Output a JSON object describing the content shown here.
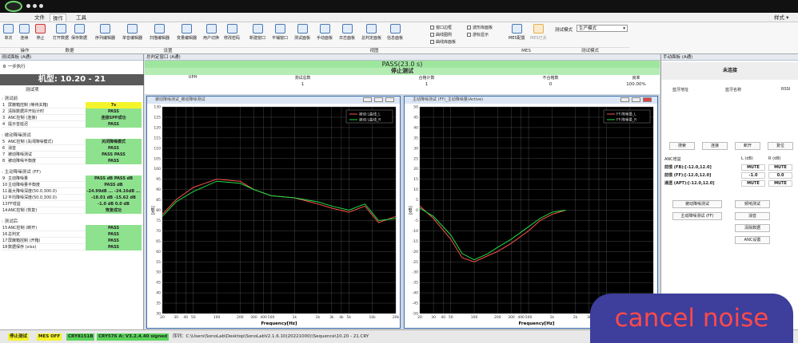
{
  "window": {
    "right_label": "样式 ▾"
  },
  "menu": {
    "tabs": [
      "文件",
      "操作",
      "工具"
    ]
  },
  "ribbon": {
    "buttons": [
      "单次",
      "连续",
      "停止",
      "打开数据",
      "保存数据",
      "序列编辑器",
      "单音编辑器",
      "扫描编辑器",
      "变量编辑器",
      "用户切换",
      "修改密码",
      "新建窗口",
      "平铺窗口",
      "测试面板",
      "手动面板",
      "日志面板",
      "总判定面板",
      "信息面板",
      "MES配置",
      "MES已关"
    ],
    "checkboxes": [
      "窗口边框",
      "曲线图例",
      "曲线库面板",
      "波形库面板",
      "游标显示"
    ],
    "test_mode_label": "测试模式",
    "test_mode_value": "生产模式",
    "groups": [
      "操作",
      "数据",
      "设置",
      "视图",
      "MES",
      "测试模式"
    ]
  },
  "left_panel": {
    "title": "测试面板 (A通)",
    "step_label": "一步执行",
    "machine": "机型: 10.20 - 21",
    "test_item_label": "测试项",
    "groups": [
      {
        "title": ": 测试前",
        "rows": [
          {
            "n": "1",
            "name": "屏蔽箱控制 (等待关箱)",
            "v": "7s",
            "c": "y"
          },
          {
            "n": "2",
            "name": "清除数据并开始计时",
            "v": "PASS",
            "c": "g"
          },
          {
            "n": "3",
            "name": "ANC控制 (连接)",
            "v": "连接SPP成功",
            "c": "g"
          },
          {
            "n": "4",
            "name": "提示音延迟",
            "v": "PASS",
            "c": "g"
          }
        ]
      },
      {
        "title": ": 被动降噪测试",
        "rows": [
          {
            "n": "5",
            "name": "ANC控制 (关闭降噪模式)",
            "v": "关闭降噪模式",
            "c": "g"
          },
          {
            "n": "6",
            "name": "消音",
            "v": "PASS",
            "c": "g"
          },
          {
            "n": "7",
            "name": "被动降噪测试",
            "v": "PASS    PASS",
            "c": "g"
          },
          {
            "n": "8",
            "name": "被动降噪平衡度",
            "v": "PASS",
            "c": "g"
          }
        ]
      },
      {
        "title": ": 主动降噪测试 (FF)",
        "rows": [
          {
            "n": "9",
            "name": "主动降噪量",
            "v": "PASS dB   PASS dB",
            "c": "g"
          },
          {
            "n": "10",
            "name": "主动降噪量平衡度",
            "v": "PASS dB",
            "c": "g"
          },
          {
            "n": "11",
            "name": "最大降噪深度(50.0,300.0)",
            "v": "-24.99dB ... -24.16dB ...",
            "c": "g"
          },
          {
            "n": "12",
            "name": "平均降噪深度(50.0,300.0)",
            "v": "-18.01 dB   -15.62 dB",
            "c": "g"
          },
          {
            "n": "13",
            "name": "FF增益",
            "v": "-1.0 dB    0.0 dB",
            "c": "g"
          },
          {
            "n": "14",
            "name": "ANC控制 (恢复)",
            "v": "恢复成功",
            "c": "g"
          }
        ]
      },
      {
        "title": ": 测试后",
        "rows": [
          {
            "n": "15",
            "name": "ANC控制 (断开)",
            "v": "PASS",
            "c": "g"
          },
          {
            "n": "16",
            "name": "总判定",
            "v": "PASS",
            "c": "g"
          },
          {
            "n": "17",
            "name": "屏蔽箱控制 (开箱)",
            "v": "PASS",
            "c": "g"
          },
          {
            "n": "18",
            "name": "数据保存 (xlsx)",
            "v": "PASS",
            "c": "g"
          }
        ]
      }
    ]
  },
  "main": {
    "title": "总判定窗口 (A通)",
    "pass": "PASS(23.0 s)",
    "stop": "停止测试",
    "stats": [
      {
        "label": "UPH",
        "value": ""
      },
      {
        "label": "测试总数",
        "value": "1"
      },
      {
        "label": "合格计数",
        "value": "1"
      },
      {
        "label": "不合格数",
        "value": "0"
      },
      {
        "label": "良率",
        "value": "100.00%"
      }
    ]
  },
  "chart1": {
    "window_title": "被动降噪测试_被动降噪测试",
    "legend": [
      "被动:L曲线_L",
      "被动:L曲线_R"
    ],
    "xlabel": "Frequency[Hz]",
    "ylabel": "[dB]"
  },
  "chart2": {
    "window_title": "主动降噪测试 (FF)_主动降噪量(Active)",
    "legend": [
      "FF:降噪量_L",
      "FF:降噪量_R"
    ],
    "xlabel": "Frequency[Hz]",
    "ylabel": "[dB]"
  },
  "chart_data": [
    {
      "type": "line",
      "title": "",
      "xlabel": "Frequency[Hz]",
      "ylabel": "[dB]",
      "x_scale": "log",
      "xlim": [
        20,
        20000
      ],
      "ylim": [
        30,
        130
      ],
      "x_ticks": [
        "20",
        "30",
        "40",
        "50",
        "100",
        "200",
        "300",
        "400",
        "500",
        "1k",
        "2k",
        "3k",
        "4k",
        "5k",
        "10k",
        "20k"
      ],
      "y_ticks": [
        "130",
        "125",
        "120",
        "115",
        "110",
        "105",
        "100",
        "95",
        "90",
        "85",
        "80",
        "75",
        "70",
        "65",
        "60",
        "55",
        "50",
        "45",
        "40",
        "35",
        "30"
      ],
      "legend": "top-right",
      "grid": true,
      "x": [
        20,
        30,
        50,
        100,
        200,
        300,
        500,
        1000,
        2000,
        3000,
        5000,
        8000,
        12000,
        20000
      ],
      "series": [
        {
          "name": "被动:L曲线_L",
          "color": "#ff5050",
          "values": [
            78,
            85,
            91,
            95,
            94,
            90,
            87,
            86,
            83,
            81,
            79,
            82,
            74,
            77
          ]
        },
        {
          "name": "被动:L曲线_R",
          "color": "#22dd44",
          "values": [
            77,
            84,
            89,
            94,
            93,
            90,
            87,
            86,
            84,
            82,
            80,
            83,
            75,
            76
          ]
        }
      ]
    },
    {
      "type": "line",
      "title": "",
      "xlabel": "Frequency[Hz]",
      "ylabel": "[dB]",
      "x_scale": "log",
      "xlim": [
        20,
        20000
      ],
      "ylim": [
        -50,
        50
      ],
      "x_ticks": [
        "20",
        "30",
        "40",
        "50",
        "100",
        "200",
        "300",
        "400",
        "500",
        "1k",
        "2k",
        "3k",
        "4k",
        "5k",
        "10k",
        "20k"
      ],
      "y_ticks": [
        "50",
        "45",
        "40",
        "35",
        "30",
        "25",
        "20",
        "15",
        "10",
        "5",
        "0",
        "-5",
        "-10",
        "-15",
        "-20",
        "-25",
        "-30",
        "-35",
        "-40",
        "-45",
        "-50"
      ],
      "legend": "top-right",
      "grid": true,
      "x": [
        20,
        30,
        50,
        70,
        100,
        150,
        200,
        300,
        500,
        700,
        1000,
        1500
      ],
      "series": [
        {
          "name": "FF:降噪量_L",
          "color": "#ff5050",
          "values": [
            2,
            -4,
            -14,
            -23,
            -25,
            -22,
            -20,
            -16,
            -10,
            -5,
            -2,
            0
          ]
        },
        {
          "name": "FF:降噪量_R",
          "color": "#22dd44",
          "values": [
            1,
            -3,
            -12,
            -21,
            -24,
            -21,
            -18,
            -14,
            -8,
            -4,
            -1,
            0
          ]
        }
      ]
    }
  ],
  "right_panel": {
    "title": "手动面板 (A通)",
    "status": "未连接",
    "cols": [
      "蓝牙地址",
      "蓝牙名称",
      "RSSI"
    ],
    "buttons": [
      "搜索",
      "连接",
      "断开",
      "复位"
    ],
    "anc_table": {
      "headers": [
        "ANC增益",
        "L (dB)",
        "R (dB)"
      ],
      "rows": [
        {
          "name": "前馈 (FB):[-12.0,12.0]",
          "l": "MUTE",
          "r": "MUTE"
        },
        {
          "name": "前馈 (FF):[-12.0,12.0]",
          "l": "-1.0",
          "r": "0.0"
        },
        {
          "name": "通透 (APT):[-12.0,12.0]",
          "l": "MUTE",
          "r": "MUTE"
        }
      ]
    },
    "actions": [
      "被动降噪测试",
      "频响测试",
      "主动降噪测试 (FF)",
      "消音",
      "清除数据",
      "ANC设置"
    ]
  },
  "statusbar": {
    "items": [
      "停止测试",
      "MES OFF",
      "CRY8151B",
      "CRY576 A: V3.2.4.40 signed"
    ],
    "path": "序列：C:\\Users\\SonoLab\\Desktop\\SonoLabV2.1.6.10(20221000)\\Sequence\\10.20 - 21.CRY"
  },
  "overlay_text": "cancel noise"
}
